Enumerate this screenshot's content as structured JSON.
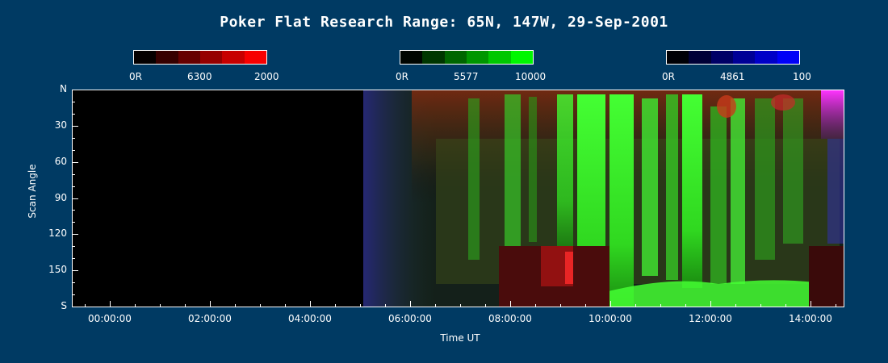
{
  "chart_data": {
    "type": "heatmap",
    "title": "Poker Flat Research Range: 65N, 147W, 29-Sep-2001",
    "xlabel": "Time UT",
    "ylabel": "Scan Angle",
    "x_tick_labels": [
      "00:00:00",
      "02:00:00",
      "04:00:00",
      "06:00:00",
      "08:00:00",
      "10:00:00",
      "12:00:00",
      "14:00:00"
    ],
    "y_tick_labels": [
      "N",
      "30",
      "60",
      "90",
      "120",
      "150",
      "S"
    ],
    "xlim": [
      "23:20:00",
      "14:45:00"
    ],
    "data_start": "05:08:00",
    "colorbars": [
      {
        "channel": "6300",
        "min_label": "0R",
        "max_label": "2000",
        "color": "#ff0000"
      },
      {
        "channel": "5577",
        "min_label": "0R",
        "max_label": "10000",
        "color": "#00ff00"
      },
      {
        "channel": "4861",
        "min_label": "0R",
        "max_label": "100",
        "color": "#0000ff"
      }
    ],
    "features": [
      {
        "name": "green aurora band",
        "time": "08:45-10:00",
        "intensity": "high"
      },
      {
        "name": "green aurora band",
        "time": "10:30-13:00",
        "intensity": "high"
      },
      {
        "name": "red data gap",
        "time": "07:45-10:00",
        "scan_angle": "125-180"
      },
      {
        "name": "red data gap",
        "time": "14:00-14:45",
        "scan_angle": "125-180"
      },
      {
        "name": "magenta edge",
        "time": "14:15-14:45",
        "scan_angle": "0-45"
      }
    ]
  }
}
